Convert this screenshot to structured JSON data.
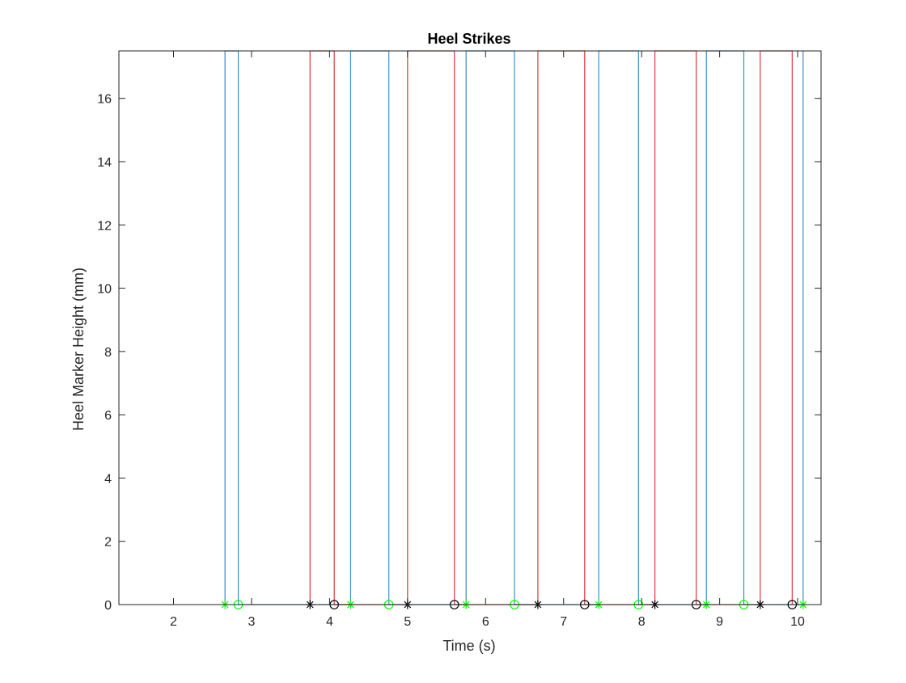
{
  "chart_data": {
    "type": "line",
    "title": "Heel Strikes",
    "xlabel": "Time (s)",
    "ylabel": "Heel Marker Height (mm)",
    "xlim": [
      1.3,
      10.3
    ],
    "ylim": [
      0,
      17.5
    ],
    "xticks": [
      2,
      3,
      4,
      5,
      6,
      7,
      8,
      9,
      10
    ],
    "yticks": [
      0,
      2,
      4,
      6,
      8,
      10,
      12,
      14,
      16
    ],
    "xtick_labels": [
      "2",
      "3",
      "4",
      "5",
      "6",
      "7",
      "8",
      "9",
      "10"
    ],
    "ytick_labels": [
      "0",
      "2",
      "4",
      "6",
      "8",
      "10",
      "12",
      "14",
      "16"
    ],
    "grid": false,
    "legend": "none",
    "series": [
      {
        "color": "#3b8fc6",
        "style": "step",
        "x_up": [
          2.66,
          4.27,
          5.75,
          7.45,
          8.83,
          10.07
        ],
        "x_down": [
          2.83,
          4.76,
          6.37,
          7.96,
          9.31
        ],
        "baseline": 0,
        "peak": 17.5
      },
      {
        "color": "#e0393e",
        "style": "step",
        "x_up": [
          3.75,
          5.0,
          6.67,
          8.17,
          9.52
        ],
        "x_down": [
          4.06,
          5.6,
          7.27,
          8.7,
          9.93
        ],
        "baseline": 0,
        "peak": 17.5
      }
    ],
    "markers": [
      {
        "shape": "asterisk",
        "color": "#00ff00",
        "x": [
          2.66,
          4.27,
          5.75,
          7.45,
          8.83,
          10.07
        ],
        "y": 0
      },
      {
        "shape": "circle",
        "color": "#00ff00",
        "x": [
          2.83,
          4.76,
          6.37,
          7.96,
          9.31
        ],
        "y": 0
      },
      {
        "shape": "asterisk",
        "color": "#000000",
        "x": [
          3.75,
          5.0,
          6.67,
          8.17,
          9.52
        ],
        "y": 0
      },
      {
        "shape": "circle",
        "color": "#000000",
        "x": [
          4.06,
          5.6,
          7.27,
          8.7,
          9.93
        ],
        "y": 0
      }
    ]
  }
}
